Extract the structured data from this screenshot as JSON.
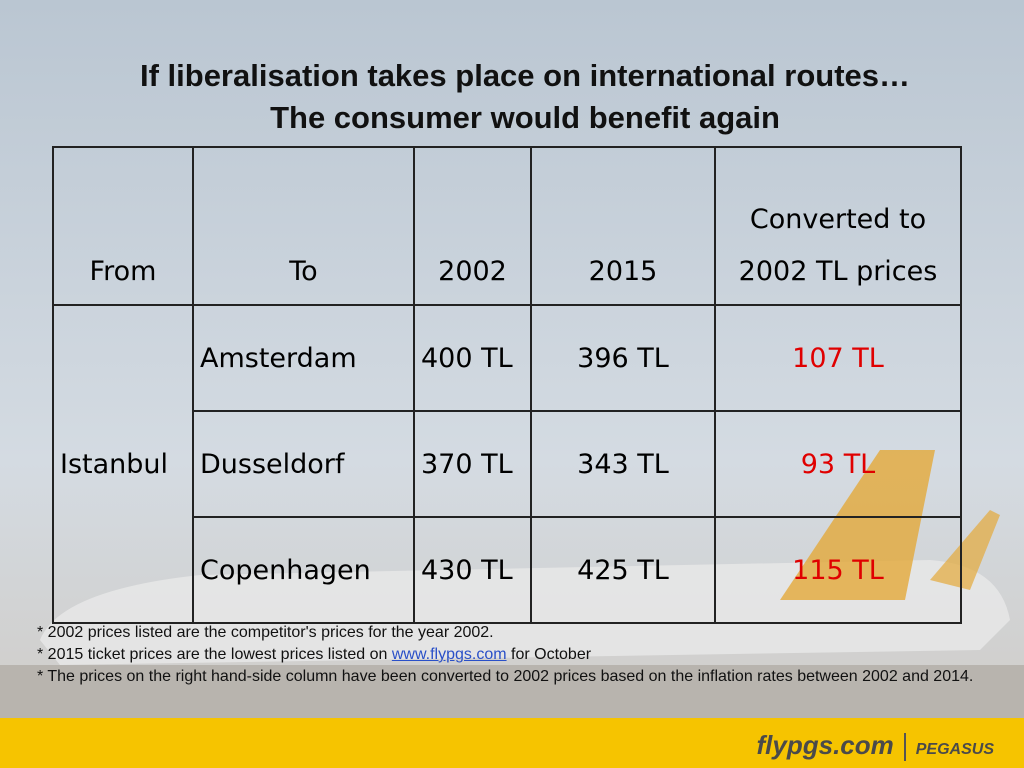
{
  "title": {
    "line1": "If liberalisation takes place on international routes…",
    "line2": "The consumer would benefit again"
  },
  "table": {
    "header": [
      "From",
      "To",
      "2002",
      "2015",
      "Converted to 2002 TL prices"
    ],
    "origin": "Istanbul",
    "rows": [
      [
        "Amsterdam",
        "400 TL",
        "396 TL",
        "107 TL"
      ],
      [
        "Dusseldorf",
        "370 TL",
        "343 TL",
        "93 TL"
      ],
      [
        "Copenhagen",
        "430 TL",
        "425 TL",
        "115 TL"
      ]
    ]
  },
  "footnotes": {
    "note1": "* 2002 prices listed are the competitor's prices for the year 2002.",
    "note2_before": "* 2015 ticket prices are the lowest prices listed on",
    "note2_link": "www.flypgs.com",
    "note2_after": "for October",
    "note3": "* The prices on the right hand-side column  have been converted to 2002 prices based on the inflation rates between 2002 and 2014."
  },
  "footer": {
    "brand": "flypgs.com",
    "airline": "PEGASUS"
  }
}
